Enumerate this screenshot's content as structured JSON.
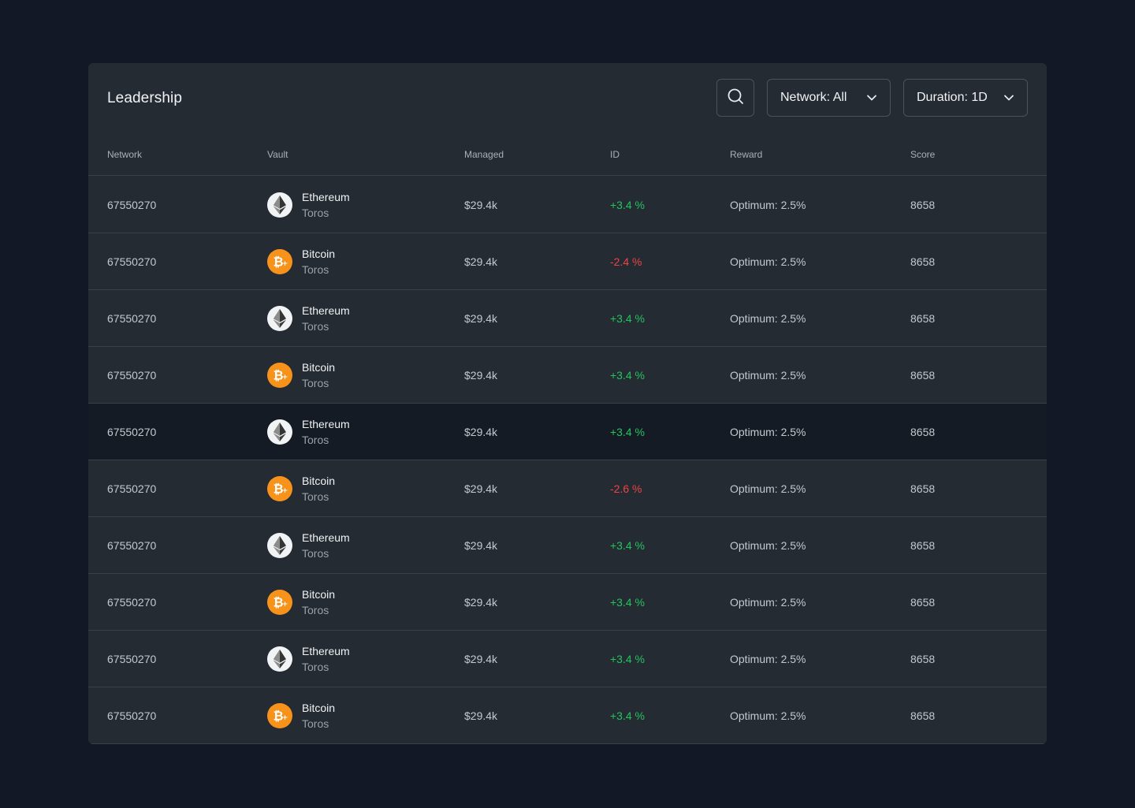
{
  "header": {
    "title": "Leadership",
    "network_filter": "Network: All",
    "duration_filter": "Duration: 1D"
  },
  "columns": {
    "network": "Network",
    "vault": "Vault",
    "managed": "Managed",
    "id": "ID",
    "reward": "Reward",
    "score": "Score"
  },
  "colors": {
    "positive": "#22c55e",
    "negative": "#ef4444",
    "bitcoin": "#f7931a",
    "ethereum_bg": "#f2f3f5"
  },
  "rows": [
    {
      "network": "67550270",
      "coin": "eth",
      "icon": "ethereum-icon",
      "vault_name": "Ethereum",
      "vault_sub": "Toros",
      "managed": "$29.4k",
      "id": "+3.4 %",
      "trend": "pos",
      "reward": "Optimum: 2.5%",
      "score": "8658"
    },
    {
      "network": "67550270",
      "coin": "btc",
      "icon": "bitcoin-icon",
      "vault_name": "Bitcoin",
      "vault_sub": "Toros",
      "managed": "$29.4k",
      "id": "-2.4 %",
      "trend": "neg",
      "reward": "Optimum: 2.5%",
      "score": "8658"
    },
    {
      "network": "67550270",
      "coin": "eth",
      "icon": "ethereum-icon",
      "vault_name": "Ethereum",
      "vault_sub": "Toros",
      "managed": "$29.4k",
      "id": "+3.4 %",
      "trend": "pos",
      "reward": "Optimum: 2.5%",
      "score": "8658"
    },
    {
      "network": "67550270",
      "coin": "btc",
      "icon": "bitcoin-icon",
      "vault_name": "Bitcoin",
      "vault_sub": "Toros",
      "managed": "$29.4k",
      "id": "+3.4 %",
      "trend": "pos",
      "reward": "Optimum: 2.5%",
      "score": "8658"
    },
    {
      "network": "67550270",
      "coin": "eth",
      "icon": "ethereum-icon",
      "vault_name": "Ethereum",
      "vault_sub": "Toros",
      "managed": "$29.4k",
      "id": "+3.4 %",
      "trend": "pos",
      "reward": "Optimum: 2.5%",
      "score": "8658",
      "highlight": true
    },
    {
      "network": "67550270",
      "coin": "btc",
      "icon": "bitcoin-icon",
      "vault_name": "Bitcoin",
      "vault_sub": "Toros",
      "managed": "$29.4k",
      "id": "-2.6 %",
      "trend": "neg",
      "reward": "Optimum: 2.5%",
      "score": "8658"
    },
    {
      "network": "67550270",
      "coin": "eth",
      "icon": "ethereum-icon",
      "vault_name": "Ethereum",
      "vault_sub": "Toros",
      "managed": "$29.4k",
      "id": "+3.4 %",
      "trend": "pos",
      "reward": "Optimum: 2.5%",
      "score": "8658"
    },
    {
      "network": "67550270",
      "coin": "btc",
      "icon": "bitcoin-icon",
      "vault_name": "Bitcoin",
      "vault_sub": "Toros",
      "managed": "$29.4k",
      "id": "+3.4 %",
      "trend": "pos",
      "reward": "Optimum: 2.5%",
      "score": "8658"
    },
    {
      "network": "67550270",
      "coin": "eth",
      "icon": "ethereum-icon",
      "vault_name": "Ethereum",
      "vault_sub": "Toros",
      "managed": "$29.4k",
      "id": "+3.4 %",
      "trend": "pos",
      "reward": "Optimum: 2.5%",
      "score": "8658"
    },
    {
      "network": "67550270",
      "coin": "btc",
      "icon": "bitcoin-icon",
      "vault_name": "Bitcoin",
      "vault_sub": "Toros",
      "managed": "$29.4k",
      "id": "+3.4 %",
      "trend": "pos",
      "reward": "Optimum: 2.5%",
      "score": "8658"
    }
  ]
}
